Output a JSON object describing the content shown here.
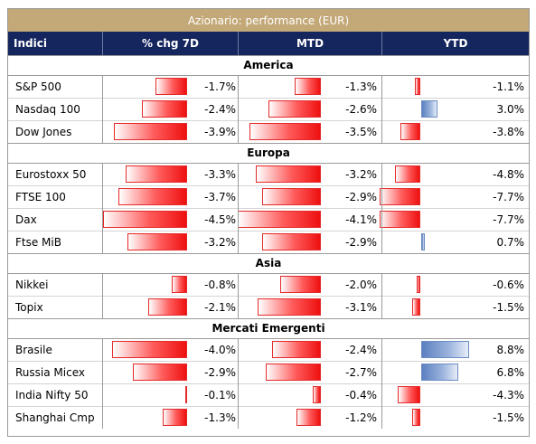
{
  "table": {
    "title": "Azionario: performance (EUR)",
    "headers": [
      "Indici",
      "% chg 7D",
      "MTD",
      "YTD"
    ],
    "sections": [
      {
        "label": "America",
        "rows": [
          {
            "name": "S&P 500",
            "chg7d": "-1.7%",
            "mtd": "-1.3%",
            "ytd": "-1.1%"
          },
          {
            "name": "Nasdaq 100",
            "chg7d": "-2.4%",
            "mtd": "-2.6%",
            "ytd": "3.0%"
          },
          {
            "name": "Dow Jones",
            "chg7d": "-3.9%",
            "mtd": "-3.5%",
            "ytd": "-3.8%"
          }
        ]
      },
      {
        "label": "Europa",
        "rows": [
          {
            "name": "Eurostoxx 50",
            "chg7d": "-3.3%",
            "mtd": "-3.2%",
            "ytd": "-4.8%"
          },
          {
            "name": "FTSE 100",
            "chg7d": "-3.7%",
            "mtd": "-2.9%",
            "ytd": "-7.7%"
          },
          {
            "name": "Dax",
            "chg7d": "-4.5%",
            "mtd": "-4.1%",
            "ytd": "-7.7%"
          },
          {
            "name": "Ftse MiB",
            "chg7d": "-3.2%",
            "mtd": "-2.9%",
            "ytd": "0.7%"
          }
        ]
      },
      {
        "label": "Asia",
        "rows": [
          {
            "name": "Nikkei",
            "chg7d": "-0.8%",
            "mtd": "-2.0%",
            "ytd": "-0.6%"
          },
          {
            "name": "Topix",
            "chg7d": "-2.1%",
            "mtd": "-3.1%",
            "ytd": "-1.5%"
          }
        ]
      },
      {
        "label": "Mercati Emergenti",
        "rows": [
          {
            "name": "Brasile",
            "chg7d": "-4.0%",
            "mtd": "-2.4%",
            "ytd": "8.8%"
          },
          {
            "name": "Russia Micex",
            "chg7d": "-2.9%",
            "mtd": "-2.7%",
            "ytd": "6.8%"
          },
          {
            "name": "India Nifty 50",
            "chg7d": "-0.1%",
            "mtd": "-0.4%",
            "ytd": "-4.3%"
          },
          {
            "name": "Shanghai Cmp",
            "chg7d": "-1.3%",
            "mtd": "-1.2%",
            "ytd": "-1.5%"
          }
        ]
      }
    ]
  },
  "chart_data": {
    "type": "table",
    "title": "Azionario: performance (EUR)",
    "columns": [
      "% chg 7D",
      "MTD",
      "YTD"
    ],
    "unit": "%",
    "categories": [
      "S&P 500",
      "Nasdaq 100",
      "Dow Jones",
      "Eurostoxx 50",
      "FTSE 100",
      "Dax",
      "Ftse MiB",
      "Nikkei",
      "Topix",
      "Brasile",
      "Russia Micex",
      "India Nifty 50",
      "Shanghai Cmp"
    ],
    "groups": [
      {
        "name": "America",
        "categories": [
          "S&P 500",
          "Nasdaq 100",
          "Dow Jones"
        ]
      },
      {
        "name": "Europa",
        "categories": [
          "Eurostoxx 50",
          "FTSE 100",
          "Dax",
          "Ftse MiB"
        ]
      },
      {
        "name": "Asia",
        "categories": [
          "Nikkei",
          "Topix"
        ]
      },
      {
        "name": "Mercati Emergenti",
        "categories": [
          "Brasile",
          "Russia Micex",
          "India Nifty 50",
          "Shanghai Cmp"
        ]
      }
    ],
    "series": [
      {
        "name": "% chg 7D",
        "values": [
          -1.7,
          -2.4,
          -3.9,
          -3.3,
          -3.7,
          -4.5,
          -3.2,
          -0.8,
          -2.1,
          -4.0,
          -2.9,
          -0.1,
          -1.3
        ]
      },
      {
        "name": "MTD",
        "values": [
          -1.3,
          -2.6,
          -3.5,
          -3.2,
          -2.9,
          -4.1,
          -2.9,
          -2.0,
          -3.1,
          -2.4,
          -2.7,
          -0.4,
          -1.2
        ]
      },
      {
        "name": "YTD",
        "values": [
          -1.1,
          3.0,
          -3.8,
          -4.8,
          -7.7,
          -7.7,
          0.7,
          -0.6,
          -1.5,
          8.8,
          6.8,
          -4.3,
          -1.5
        ]
      }
    ],
    "colors": {
      "header_bg": "#15265f",
      "title_bg": "#c3a878",
      "negative_bar": "#ee1010",
      "positive_bar": "#5b7fc0"
    }
  }
}
